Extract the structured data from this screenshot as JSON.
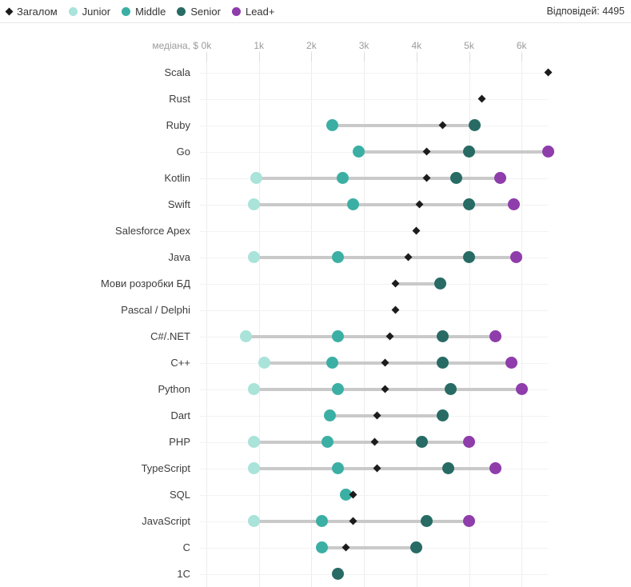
{
  "header": {
    "responses": "Відповідей: 4495",
    "legend": [
      {
        "label": "Загалом",
        "marker": "diamond",
        "color": "#1c1c1c"
      },
      {
        "label": "Junior",
        "marker": "circle",
        "color": "#a9e3d9"
      },
      {
        "label": "Middle",
        "marker": "circle",
        "color": "#3bafa4"
      },
      {
        "label": "Senior",
        "marker": "circle",
        "color": "#276b64"
      },
      {
        "label": "Lead+",
        "marker": "circle",
        "color": "#8e3dab"
      }
    ]
  },
  "axis": {
    "title": "медіана, $",
    "ticks": [
      {
        "label": "0k",
        "value": 0
      },
      {
        "label": "1k",
        "value": 1
      },
      {
        "label": "2k",
        "value": 2
      },
      {
        "label": "3k",
        "value": 3
      },
      {
        "label": "4k",
        "value": 4
      },
      {
        "label": "5k",
        "value": 5
      },
      {
        "label": "6k",
        "value": 6
      }
    ]
  },
  "chart_data": {
    "type": "scatter",
    "subtype": "dot-plot-dumbbell",
    "title": "медіана, $ (тис. на місяць)",
    "unit": "thousand USD, median salary",
    "legend_position": "top-left",
    "grid": true,
    "xlim": [
      0,
      6.6
    ],
    "categories": [
      "Scala",
      "Rust",
      "Ruby",
      "Go",
      "Kotlin",
      "Swift",
      "Salesforce Apex",
      "Java",
      "Мови розробки БД",
      "Pascal / Delphi",
      "C#/.NET",
      "C++",
      "Python",
      "Dart",
      "PHP",
      "TypeScript",
      "SQL",
      "JavaScript",
      "C",
      "1C"
    ],
    "series": [
      {
        "name": "Junior",
        "marker": "circle",
        "values": [
          null,
          null,
          null,
          null,
          0.95,
          0.9,
          null,
          0.9,
          null,
          null,
          0.75,
          1.1,
          0.9,
          null,
          0.9,
          0.9,
          null,
          0.9,
          null,
          null
        ]
      },
      {
        "name": "Middle",
        "marker": "circle",
        "values": [
          null,
          null,
          2.4,
          2.9,
          2.6,
          2.8,
          null,
          2.5,
          null,
          null,
          2.5,
          2.4,
          2.5,
          2.35,
          2.3,
          2.5,
          2.65,
          2.2,
          2.2,
          null
        ]
      },
      {
        "name": "Senior",
        "marker": "circle",
        "values": [
          null,
          null,
          5.1,
          5.0,
          4.75,
          5.0,
          null,
          5.0,
          4.45,
          null,
          4.5,
          4.5,
          4.65,
          4.5,
          4.1,
          4.6,
          null,
          4.2,
          4.0,
          2.5
        ]
      },
      {
        "name": "Lead+",
        "marker": "circle",
        "values": [
          null,
          null,
          null,
          6.5,
          5.6,
          5.85,
          null,
          5.9,
          null,
          null,
          5.5,
          5.8,
          6.0,
          null,
          5.0,
          5.5,
          null,
          5.0,
          null,
          null
        ]
      },
      {
        "name": "Загалом",
        "marker": "diamond",
        "values": [
          6.5,
          5.25,
          4.5,
          4.2,
          4.2,
          4.05,
          4.0,
          3.85,
          3.6,
          3.6,
          3.5,
          3.4,
          3.4,
          3.25,
          3.2,
          3.25,
          2.8,
          2.8,
          2.65,
          null
        ]
      }
    ]
  }
}
